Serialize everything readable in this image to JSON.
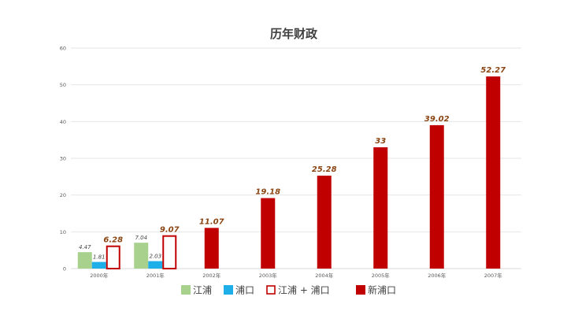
{
  "chart_data": {
    "type": "bar",
    "title": "历年财政",
    "xlabel": "",
    "ylabel": "",
    "ylim": [
      0,
      60
    ],
    "yticks": [
      0,
      10,
      20,
      30,
      40,
      50,
      60
    ],
    "grid": true,
    "legend_position": "bottom",
    "categories": [
      "2000年",
      "2001年",
      "2002年",
      "2003年",
      "2004年",
      "2005年",
      "2006年",
      "2007年"
    ],
    "series": [
      {
        "name": "江浦",
        "color": "#a9d18e",
        "style": "filled",
        "values": [
          4.47,
          7.04,
          null,
          null,
          null,
          null,
          null,
          null
        ],
        "labels": [
          "4.47",
          "7.04",
          "",
          "",
          "",
          "",
          "",
          ""
        ]
      },
      {
        "name": "浦口",
        "color": "#1eaee8",
        "style": "filled",
        "values": [
          1.81,
          2.03,
          null,
          null,
          null,
          null,
          null,
          null
        ],
        "labels": [
          "1.81",
          "2.03",
          "",
          "",
          "",
          "",
          "",
          ""
        ]
      },
      {
        "name": "江浦 + 浦口",
        "color": "#c00000",
        "style": "outline",
        "values": [
          6.28,
          9.07,
          null,
          null,
          null,
          null,
          null,
          null
        ],
        "labels": [
          "6.28",
          "9.07",
          "",
          "",
          "",
          "",
          "",
          ""
        ]
      },
      {
        "name": "新浦口",
        "color": "#c00000",
        "style": "filled",
        "values": [
          null,
          null,
          11.07,
          19.18,
          25.28,
          33,
          39.02,
          52.27
        ],
        "labels": [
          "",
          "",
          "11.07",
          "19.18",
          "25.28",
          "33",
          "39.02",
          "52.27"
        ]
      }
    ]
  }
}
